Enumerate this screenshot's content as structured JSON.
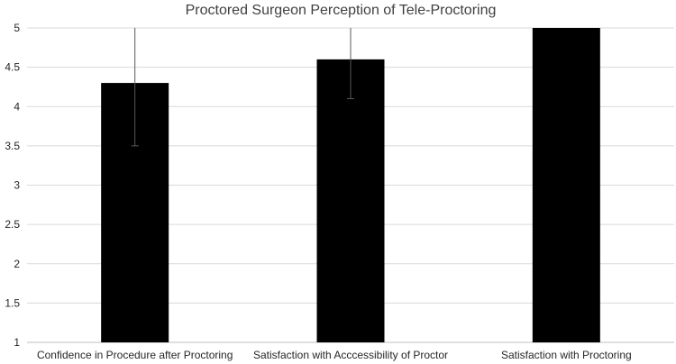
{
  "chart_data": {
    "type": "bar",
    "title": "Proctored Surgeon Perception of Tele-Proctoring",
    "xlabel": "",
    "ylabel": "",
    "categories": [
      "Confidence in Procedure after Proctoring",
      "Satisfaction with Acccessibility of Proctor",
      "Satisfaction with Proctoring"
    ],
    "values": [
      4.3,
      4.6,
      5.0
    ],
    "error_bars": [
      {
        "low": 3.5,
        "high": 5.0
      },
      {
        "low": 4.1,
        "high": 5.0
      },
      {
        "low": 5.0,
        "high": 5.0
      }
    ],
    "ylim": [
      1,
      5
    ],
    "yticks": [
      "1",
      "1.5",
      "2",
      "2.5",
      "3",
      "3.5",
      "4",
      "4.5",
      "5"
    ],
    "grid": true,
    "legend": "none",
    "colors": {
      "bar": "#000000",
      "grid": "#d9d9d9",
      "error": "#595959",
      "text": "#262626"
    }
  }
}
